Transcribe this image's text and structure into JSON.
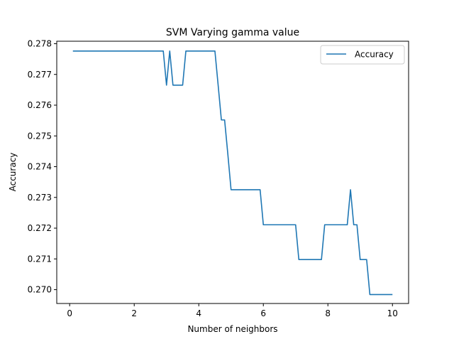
{
  "chart_data": {
    "type": "line",
    "title": "SVM Varying gamma value",
    "xlabel": "Number of neighbors",
    "ylabel": "Accuracy",
    "xlim": [
      -0.4,
      10.5
    ],
    "ylim": [
      0.26955,
      0.27808
    ],
    "xticks": [
      0,
      2,
      4,
      6,
      8,
      10
    ],
    "xtick_labels": [
      "0",
      "2",
      "4",
      "6",
      "8",
      "10"
    ],
    "yticks": [
      0.27,
      0.271,
      0.272,
      0.273,
      0.274,
      0.275,
      0.276,
      0.277,
      0.278
    ],
    "ytick_labels": [
      "0.270",
      "0.271",
      "0.272",
      "0.273",
      "0.274",
      "0.275",
      "0.276",
      "0.277",
      "0.278"
    ],
    "grid": false,
    "legend_position": "upper right",
    "series": [
      {
        "name": "Accuracy",
        "color": "#1f77b4",
        "x": [
          0.1,
          0.2,
          0.3,
          0.4,
          0.5,
          0.6,
          0.7,
          0.8,
          0.9,
          1.0,
          1.1,
          1.2,
          1.3,
          1.4,
          1.5,
          1.6,
          1.7,
          1.8,
          1.9,
          2.0,
          2.1,
          2.2,
          2.3,
          2.4,
          2.5,
          2.6,
          2.7,
          2.8,
          2.9,
          3.0,
          3.1,
          3.2,
          3.3,
          3.4,
          3.5,
          3.6,
          3.7,
          3.8,
          3.9,
          4.0,
          4.1,
          4.2,
          4.3,
          4.4,
          4.5,
          4.6,
          4.7,
          4.8,
          4.9,
          5.0,
          5.1,
          5.2,
          5.3,
          5.4,
          5.5,
          5.6,
          5.7,
          5.8,
          5.9,
          6.0,
          6.1,
          6.2,
          6.3,
          6.4,
          6.5,
          6.6,
          6.7,
          6.8,
          6.9,
          7.0,
          7.1,
          7.2,
          7.3,
          7.4,
          7.5,
          7.6,
          7.7,
          7.8,
          7.9,
          8.0,
          8.1,
          8.2,
          8.3,
          8.4,
          8.5,
          8.6,
          8.7,
          8.8,
          8.9,
          9.0,
          9.1,
          9.2,
          9.3,
          9.4,
          9.5,
          9.6,
          9.7,
          9.8,
          9.9,
          10.0
        ],
        "y": [
          0.27776,
          0.27776,
          0.27776,
          0.27776,
          0.27776,
          0.27776,
          0.27776,
          0.27776,
          0.27776,
          0.27776,
          0.27776,
          0.27776,
          0.27776,
          0.27776,
          0.27776,
          0.27776,
          0.27776,
          0.27776,
          0.27776,
          0.27776,
          0.27776,
          0.27776,
          0.27776,
          0.27776,
          0.27776,
          0.27776,
          0.27776,
          0.27776,
          0.27776,
          0.27665,
          0.27776,
          0.27665,
          0.27665,
          0.27665,
          0.27665,
          0.27776,
          0.27776,
          0.27776,
          0.27776,
          0.27776,
          0.27776,
          0.27776,
          0.27776,
          0.27776,
          0.27776,
          0.27665,
          0.27552,
          0.27552,
          0.27441,
          0.27325,
          0.27325,
          0.27325,
          0.27325,
          0.27325,
          0.27325,
          0.27325,
          0.27325,
          0.27325,
          0.27325,
          0.27211,
          0.27211,
          0.27211,
          0.27211,
          0.27211,
          0.27211,
          0.27211,
          0.27211,
          0.27211,
          0.27211,
          0.27211,
          0.27098,
          0.27098,
          0.27098,
          0.27098,
          0.27098,
          0.27098,
          0.27098,
          0.27098,
          0.27211,
          0.27211,
          0.27211,
          0.27211,
          0.27211,
          0.27211,
          0.27211,
          0.27211,
          0.27325,
          0.27211,
          0.27211,
          0.27098,
          0.27098,
          0.27098,
          0.26984,
          0.26984,
          0.26984,
          0.26984,
          0.26984,
          0.26984,
          0.26984,
          0.26984
        ]
      }
    ]
  }
}
